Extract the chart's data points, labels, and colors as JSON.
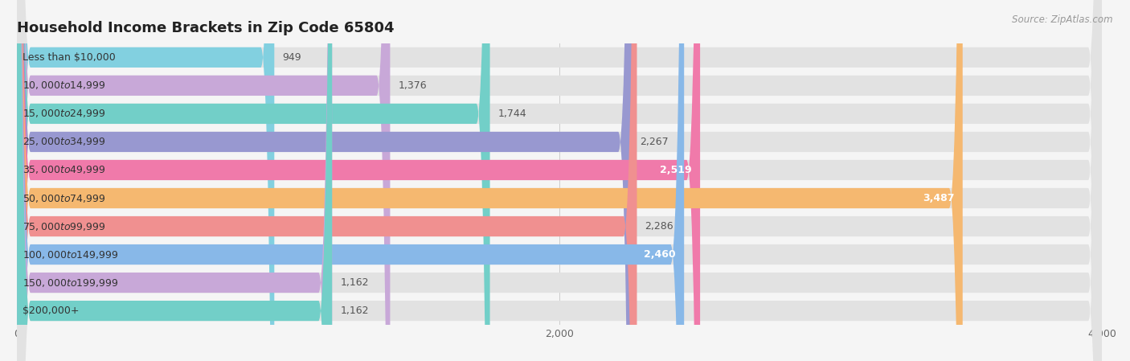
{
  "title": "Household Income Brackets in Zip Code 65804",
  "source": "Source: ZipAtlas.com",
  "categories": [
    "Less than $10,000",
    "$10,000 to $14,999",
    "$15,000 to $24,999",
    "$25,000 to $34,999",
    "$35,000 to $49,999",
    "$50,000 to $74,999",
    "$75,000 to $99,999",
    "$100,000 to $149,999",
    "$150,000 to $199,999",
    "$200,000+"
  ],
  "values": [
    949,
    1376,
    1744,
    2267,
    2519,
    3487,
    2286,
    2460,
    1162,
    1162
  ],
  "bar_colors": [
    "#82d0e0",
    "#c8a8d8",
    "#72cfc8",
    "#9898d0",
    "#f07aaa",
    "#f5b870",
    "#f09090",
    "#88b8e8",
    "#c8a8d8",
    "#72cfc8"
  ],
  "bg_color": "#f5f5f5",
  "bar_bg_color": "#e2e2e2",
  "xlim": [
    0,
    4000
  ],
  "value_labels": [
    "949",
    "1,376",
    "1,744",
    "2,267",
    "2,519",
    "3,487",
    "2,286",
    "2,460",
    "1,162",
    "1,162"
  ],
  "label_inside": [
    false,
    false,
    false,
    false,
    true,
    true,
    false,
    true,
    false,
    false
  ],
  "title_fontsize": 13,
  "tick_fontsize": 9,
  "label_fontsize": 9,
  "category_fontsize": 9
}
